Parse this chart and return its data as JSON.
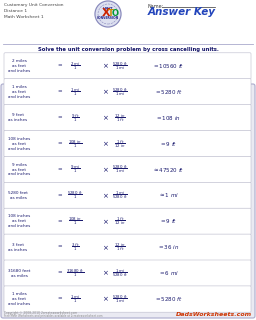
{
  "title_lines": [
    "Customary Unit Conversion",
    "Distance 1",
    "Math Worksheet 1"
  ],
  "instruction": "Solve the unit conversion problem by cross cancelling units.",
  "bg_color": "#e8e8f0",
  "box_bg": "#ffffff",
  "text_color": "#1a1a6e",
  "title_color": "#444444",
  "answer_key_color": "#2244bb",
  "footer_color": "#888888",
  "dads_color": "#cc3300",
  "labels": [
    "2 miles\nas feet\nand inches",
    "1 miles\nas feet\nand inches",
    "9 feet\nas inches",
    "108 inches\nas feet\nand inches",
    "9 miles\nas feet\nand inches",
    "5280 feet\nas miles",
    "108 inches\nas feet\nand inches",
    "3 feet\nas inches",
    "31680 feet\nas miles",
    "1 miles\nas feet\nand inches"
  ],
  "n_rows": 10
}
